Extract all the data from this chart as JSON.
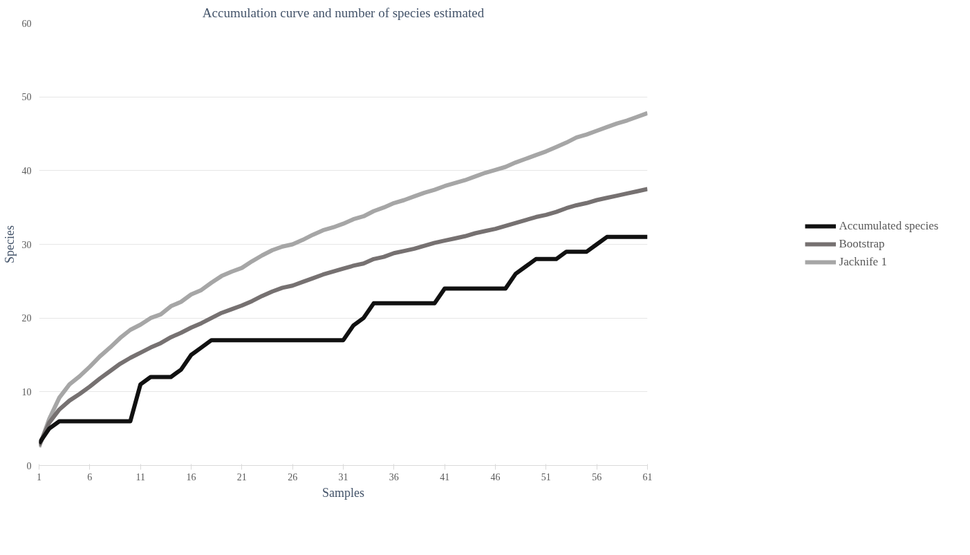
{
  "chart_data": {
    "type": "line",
    "title": "Accumulation curve and number of species estimated",
    "xlabel": "Samples",
    "ylabel": "Species",
    "x": [
      1,
      2,
      3,
      4,
      5,
      6,
      7,
      8,
      9,
      10,
      11,
      12,
      13,
      14,
      15,
      16,
      17,
      18,
      19,
      20,
      21,
      22,
      23,
      24,
      25,
      26,
      27,
      28,
      29,
      30,
      31,
      32,
      33,
      34,
      35,
      36,
      37,
      38,
      39,
      40,
      41,
      42,
      43,
      44,
      45,
      46,
      47,
      48,
      49,
      50,
      51,
      52,
      53,
      54,
      55,
      56,
      57,
      58,
      59,
      60,
      61
    ],
    "series": [
      {
        "name": "Accumulated species",
        "color": "#111111",
        "values": [
          3,
          5,
          6,
          6,
          6,
          6,
          6,
          6,
          6,
          6,
          11,
          12,
          12,
          12,
          13,
          15,
          16,
          17,
          17,
          17,
          17,
          17,
          17,
          17,
          17,
          17,
          17,
          17,
          17,
          17,
          17,
          19,
          20,
          22,
          22,
          22,
          22,
          22,
          22,
          22,
          24,
          24,
          24,
          24,
          24,
          24,
          24,
          26,
          27,
          28,
          28,
          28,
          29,
          29,
          29,
          30,
          31,
          31,
          31,
          31,
          31
        ]
      },
      {
        "name": "Bootstrap",
        "color": "#767171",
        "values": [
          2.7,
          5.8,
          7.6,
          8.8,
          9.7,
          10.7,
          11.8,
          12.8,
          13.8,
          14.6,
          15.3,
          16,
          16.6,
          17.4,
          18,
          18.7,
          19.3,
          20,
          20.7,
          21.2,
          21.7,
          22.3,
          23,
          23.6,
          24.1,
          24.4,
          24.9,
          25.4,
          25.9,
          26.3,
          26.7,
          27.1,
          27.4,
          28,
          28.3,
          28.8,
          29.1,
          29.4,
          29.8,
          30.2,
          30.5,
          30.8,
          31.1,
          31.5,
          31.8,
          32.1,
          32.5,
          32.9,
          33.3,
          33.7,
          34,
          34.4,
          34.9,
          35.3,
          35.6,
          36,
          36.3,
          36.6,
          36.9,
          37.2,
          37.5
        ]
      },
      {
        "name": "Jacknife 1",
        "color": "#a6a6a6",
        "values": [
          2.5,
          6.3,
          9.2,
          11,
          12.1,
          13.4,
          14.8,
          16,
          17.3,
          18.4,
          19.1,
          20,
          20.5,
          21.6,
          22.2,
          23.2,
          23.8,
          24.8,
          25.7,
          26.3,
          26.8,
          27.7,
          28.5,
          29.2,
          29.7,
          30,
          30.6,
          31.3,
          31.9,
          32.3,
          32.8,
          33.4,
          33.8,
          34.5,
          35,
          35.6,
          36,
          36.5,
          37,
          37.4,
          37.9,
          38.3,
          38.7,
          39.2,
          39.7,
          40.1,
          40.5,
          41.1,
          41.6,
          42.1,
          42.6,
          43.2,
          43.8,
          44.5,
          44.9,
          45.4,
          45.9,
          46.4,
          46.8,
          47.3,
          47.8
        ]
      }
    ],
    "xlim": [
      1,
      61
    ],
    "xticks": [
      1,
      6,
      11,
      16,
      21,
      26,
      31,
      36,
      41,
      46,
      51,
      56,
      61
    ],
    "ylim": [
      0,
      60
    ],
    "yticks": [
      0,
      10,
      20,
      30,
      40,
      50,
      60
    ],
    "grid": "y",
    "legend": "right",
    "marker": "none",
    "line_style": "solid"
  }
}
